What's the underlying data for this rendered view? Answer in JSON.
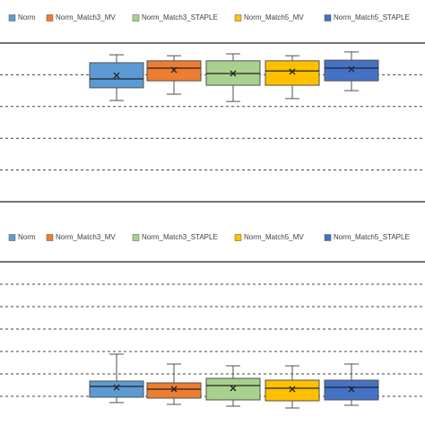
{
  "chart_data": [
    {
      "type": "box",
      "ylim": [
        0,
        5
      ],
      "yticks": [
        1,
        2,
        3,
        4
      ],
      "grid": true,
      "series": [
        {
          "name": "Norm",
          "color": "#5b9bd5",
          "whisker_low": 3.19,
          "q1": 3.59,
          "median": 3.87,
          "q3": 4.38,
          "whisker_high": 4.63,
          "mean": 3.98
        },
        {
          "name": "Norm_Match3_MV",
          "color": "#ed7d31",
          "whisker_low": 3.39,
          "q1": 3.81,
          "median": 4.21,
          "q3": 4.44,
          "whisker_high": 4.6,
          "mean": 4.15
        },
        {
          "name": "Norm_Match3_STAPLE",
          "color": "#a9d18e",
          "whisker_low": 3.16,
          "q1": 3.67,
          "median": 4.04,
          "q3": 4.44,
          "whisker_high": 4.66,
          "mean": 4.04
        },
        {
          "name": "Norm_Match5_MV",
          "color": "#ffc000",
          "whisker_low": 3.25,
          "q1": 3.67,
          "median": 4.12,
          "q3": 4.44,
          "whisker_high": 4.6,
          "mean": 4.1
        },
        {
          "name": "Norm_Match5_STAPLE",
          "color": "#4472c4",
          "whisker_low": 3.5,
          "q1": 3.81,
          "median": 4.21,
          "q3": 4.46,
          "whisker_high": 4.72,
          "mean": 4.18
        }
      ]
    },
    {
      "type": "box",
      "ylim": [
        0,
        7
      ],
      "yticks": [
        1,
        2,
        3,
        4,
        5,
        6
      ],
      "grid": true,
      "series": [
        {
          "name": "Norm",
          "color": "#5b9bd5",
          "whisker_low": 0.72,
          "q1": 0.96,
          "median": 1.44,
          "q3": 1.68,
          "whisker_high": 2.88,
          "mean": 1.4
        },
        {
          "name": "Norm_Match3_MV",
          "color": "#ed7d31",
          "whisker_low": 0.64,
          "q1": 0.92,
          "median": 1.32,
          "q3": 1.6,
          "whisker_high": 2.44,
          "mean": 1.32
        },
        {
          "name": "Norm_Match3_STAPLE",
          "color": "#a9d18e",
          "whisker_low": 0.56,
          "q1": 0.84,
          "median": 1.48,
          "q3": 1.8,
          "whisker_high": 2.36,
          "mean": 1.36
        },
        {
          "name": "Norm_Match5_MV",
          "color": "#ffc000",
          "whisker_low": 0.48,
          "q1": 0.8,
          "median": 1.36,
          "q3": 1.72,
          "whisker_high": 2.36,
          "mean": 1.32
        },
        {
          "name": "Norm_Match5_STAPLE",
          "color": "#4472c4",
          "whisker_low": 0.6,
          "q1": 0.84,
          "median": 1.4,
          "q3": 1.72,
          "whisker_high": 2.44,
          "mean": 1.32
        }
      ]
    }
  ]
}
